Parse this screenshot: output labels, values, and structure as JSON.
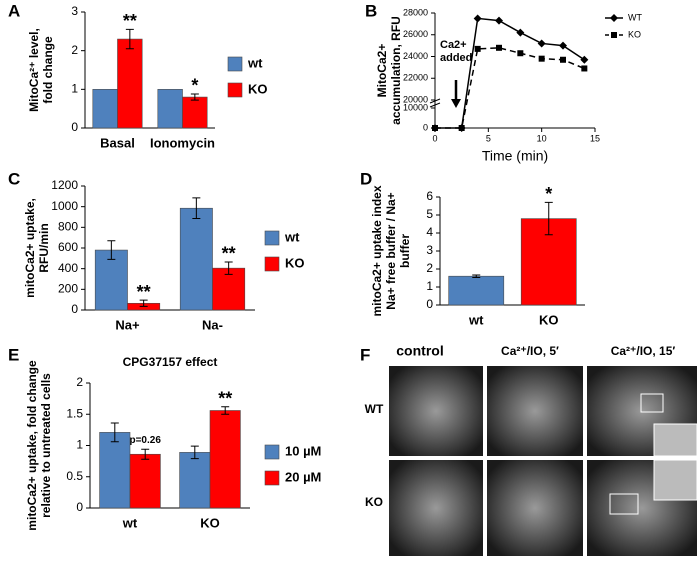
{
  "chart_data": [
    {
      "type": "bar",
      "panel_label": "A",
      "ylabel": [
        "MitoCa²⁺ level,",
        "fold change"
      ],
      "categories": [
        "Basal",
        "Ionomycin"
      ],
      "series": [
        {
          "name": "wt",
          "color": "#4f81bd",
          "values": [
            1,
            1
          ]
        },
        {
          "name": "KO",
          "color": "#ff0000",
          "values": [
            2.3,
            0.8
          ],
          "errors": [
            0.25,
            0.08
          ],
          "significance": [
            "**",
            "*"
          ]
        }
      ],
      "ylim": [
        0,
        3
      ],
      "yticks": [
        0,
        1,
        2,
        3
      ]
    },
    {
      "type": "line",
      "panel_label": "B",
      "ylabel": [
        "MitoCa2+",
        "accumulation, RFU"
      ],
      "xlabel": "Time (min)",
      "annotation": [
        "Ca2+",
        "added"
      ],
      "x": [
        0,
        2.5,
        4,
        6,
        8,
        10,
        12,
        14
      ],
      "series": [
        {
          "name": "WT",
          "color": "#000000",
          "marker": "diamond",
          "dash": false,
          "values": [
            0,
            0,
            27500,
            27300,
            26200,
            25200,
            25000,
            23700
          ]
        },
        {
          "name": "KO",
          "color": "#000000",
          "marker": "square",
          "dash": true,
          "values": [
            0,
            0,
            24700,
            24800,
            24300,
            23800,
            23700,
            22900
          ]
        }
      ],
      "xlim": [
        0,
        15
      ],
      "xticks": [
        0,
        5,
        10,
        15
      ],
      "ylim": [
        0,
        28000
      ],
      "axis_break": [
        10000,
        20000
      ],
      "yticks": [
        0,
        10000,
        20000,
        22000,
        24000,
        26000,
        28000
      ]
    },
    {
      "type": "bar",
      "panel_label": "C",
      "ylabel": [
        "mitoCa2+ uptake,",
        "RFU/min"
      ],
      "categories": [
        "Na+",
        "Na-"
      ],
      "series": [
        {
          "name": "wt",
          "color": "#4f81bd",
          "values": [
            580,
            985
          ],
          "errors": [
            90,
            100
          ]
        },
        {
          "name": "KO",
          "color": "#ff0000",
          "values": [
            65,
            405
          ],
          "errors": [
            30,
            60
          ],
          "significance": [
            "**",
            "**"
          ]
        }
      ],
      "ylim": [
        0,
        1200
      ],
      "yticks": [
        0,
        200,
        400,
        600,
        800,
        1000,
        1200
      ]
    },
    {
      "type": "bar",
      "panel_label": "D",
      "ylabel": [
        "mitoCa2+ uptake index",
        "Na+ free buffer / Na+",
        "buffer"
      ],
      "categories": [
        "wt",
        "KO"
      ],
      "values": [
        1.6,
        4.8
      ],
      "colors": [
        "#4f81bd",
        "#ff0000"
      ],
      "errors": [
        0.07,
        0.9
      ],
      "significance": [
        null,
        "*"
      ],
      "ylim": [
        0,
        6
      ],
      "yticks": [
        0,
        1,
        2,
        3,
        4,
        5,
        6
      ]
    },
    {
      "type": "bar",
      "panel_label": "E",
      "title": "CPG37157 effect",
      "ylabel": [
        "mitoCa2+ uptake, fold change",
        "relative to untreated cells"
      ],
      "categories": [
        "wt",
        "KO"
      ],
      "series": [
        {
          "name": "10  µM",
          "color": "#4f81bd",
          "values": [
            1.21,
            0.89
          ],
          "errors": [
            0.15,
            0.1
          ]
        },
        {
          "name": "20  µM",
          "color": "#ff0000",
          "values": [
            0.86,
            1.56
          ],
          "errors": [
            0.08,
            0.06
          ],
          "significance": [
            "p=0.26",
            "**"
          ]
        }
      ],
      "ylim": [
        0,
        2
      ],
      "yticks": [
        0,
        0.5,
        1,
        1.5,
        2
      ]
    }
  ],
  "image_panel": {
    "label": "F",
    "columns": [
      "control",
      "Ca²⁺/IO, 5′",
      "Ca²⁺/IO, 15′"
    ],
    "rows": [
      "WT",
      "KO"
    ]
  }
}
